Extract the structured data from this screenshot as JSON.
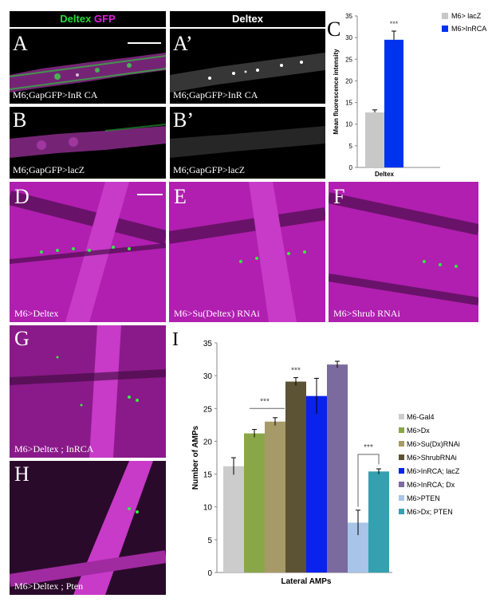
{
  "headers": {
    "left_part1": "Deltex",
    "left_part2": "GFP",
    "right": "Deltex"
  },
  "panels": [
    {
      "id": "A",
      "letter": "A",
      "caption": "M6;GapGFP>InR CA"
    },
    {
      "id": "A2",
      "letter": "A’",
      "caption": "M6;GapGFP>InR CA"
    },
    {
      "id": "B",
      "letter": "B",
      "caption": "M6;GapGFP>lacZ"
    },
    {
      "id": "B2",
      "letter": "B’",
      "caption": "M6;GapGFP>lacZ"
    },
    {
      "id": "D",
      "letter": "D",
      "caption": "M6>Deltex"
    },
    {
      "id": "E",
      "letter": "E",
      "caption": "M6>Su(Deltex) RNAi"
    },
    {
      "id": "F",
      "letter": "F",
      "caption": "M6>Shrub RNAi"
    },
    {
      "id": "G",
      "letter": "G",
      "caption": "M6>Deltex ; InRCA"
    },
    {
      "id": "H",
      "letter": "H",
      "caption": "M6>Deltex ; Pten"
    }
  ],
  "colors": {
    "green": "#22dd33",
    "magenta": "#e020e0",
    "lacZ_gray": "#c8c8c8",
    "InRCA_blue": "#0033ee"
  },
  "chart_data": [
    {
      "panel_letter": "C",
      "type": "bar",
      "categories": [
        "Deltex"
      ],
      "series": [
        {
          "name": "M6> lacZ",
          "values": [
            12.7
          ],
          "error": [
            0.6
          ],
          "color": "#c8c8c8"
        },
        {
          "name": "M6>InRCA",
          "values": [
            29.5
          ],
          "error": [
            2.0
          ],
          "color": "#0033ee"
        }
      ],
      "ylabel": "Mean fluorescence intensity",
      "xlabel": "Deltex",
      "ylim": [
        0,
        35
      ],
      "yticks": [
        "0",
        "5",
        "10",
        "15",
        "20",
        "25",
        "30",
        "35"
      ],
      "annotation": "***",
      "legend_position": "top-right"
    },
    {
      "panel_letter": "I",
      "type": "bar",
      "categories": [
        "Lateral AMPs"
      ],
      "series": [
        {
          "name": "M6-Gal4",
          "values": [
            16.2
          ],
          "error": [
            1.3
          ],
          "color": "#cccccc"
        },
        {
          "name": "M6>Dx",
          "values": [
            21.2
          ],
          "error": [
            0.6
          ],
          "color": "#8aa748"
        },
        {
          "name": "M6>Su(Dx)RNAi",
          "values": [
            23.0
          ],
          "error": [
            0.6
          ],
          "color": "#a69a68"
        },
        {
          "name": "M6>ShrubRNAi",
          "values": [
            29.1
          ],
          "error": [
            0.6
          ],
          "color": "#5c5234"
        },
        {
          "name": "M6>InRCA; lacZ",
          "values": [
            26.9
          ],
          "error": [
            2.7
          ],
          "color": "#0a22ee"
        },
        {
          "name": "M6>InRCA; Dx",
          "values": [
            31.7
          ],
          "error": [
            0.5
          ],
          "color": "#7a6a9e"
        },
        {
          "name": "M6>PTEN",
          "values": [
            7.6
          ],
          "error": [
            1.9
          ],
          "color": "#a8c4e8"
        },
        {
          "name": "M6>Dx; PTEN",
          "values": [
            15.4
          ],
          "error": [
            0.4
          ],
          "color": "#34a0b0"
        }
      ],
      "ylabel": "Number of AMPs",
      "xlabel": "Lateral AMPs",
      "ylim": [
        0,
        35
      ],
      "yticks": [
        "0",
        "5",
        "10",
        "15",
        "20",
        "25",
        "30",
        "35"
      ],
      "annotations": [
        "***",
        "***",
        "***"
      ],
      "legend_position": "right"
    }
  ]
}
